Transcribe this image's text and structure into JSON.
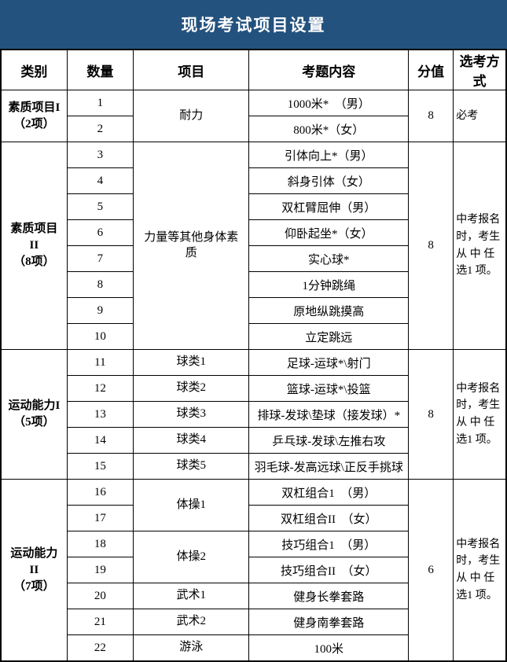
{
  "title": "现场考试项目设置",
  "colors": {
    "banner_bg": "#24527e",
    "banner_text": "#ffffff",
    "border": "#000000"
  },
  "table": {
    "headers": [
      "类别",
      "数量",
      "项目",
      "考题内容",
      "分值",
      "选考方式"
    ],
    "groups": [
      {
        "category": "素质项目I\n（2项）",
        "score": "8",
        "method": "必考",
        "projects": [
          {
            "name": "耐力",
            "items": [
              {
                "num": "1",
                "content": "1000米*　（男）"
              },
              {
                "num": "2",
                "content": "800米*（女）"
              }
            ]
          }
        ]
      },
      {
        "category": "素质项目\nII\n（8项）",
        "score": "8",
        "method": "中考报名时，考生从 中 任选1 项。",
        "projects": [
          {
            "name": "力量等其他身体素\n质",
            "items": [
              {
                "num": "3",
                "content": "引体向上*（男）"
              },
              {
                "num": "4",
                "content": "斜身引体（女）"
              },
              {
                "num": "5",
                "content": "双杠臂屈伸（男）"
              },
              {
                "num": "6",
                "content": "仰卧起坐*（女）"
              },
              {
                "num": "7",
                "content": "实心球*"
              },
              {
                "num": "8",
                "content": "1分钟跳绳"
              },
              {
                "num": "9",
                "content": "原地纵跳摸高"
              },
              {
                "num": "10",
                "content": "立定跳远"
              }
            ]
          }
        ]
      },
      {
        "category": "运动能力I\n（5项）",
        "score": "8",
        "method": "中考报名时，考生从 中 任选1 项。",
        "projects": [
          {
            "name": "球类1",
            "items": [
              {
                "num": "11",
                "content": "足球-运球*\\射门"
              }
            ]
          },
          {
            "name": "球类2",
            "items": [
              {
                "num": "12",
                "content": "篮球-运球*\\投篮"
              }
            ]
          },
          {
            "name": "球类3",
            "items": [
              {
                "num": "13",
                "content": "排球-发球\\垫球（接发球）*"
              }
            ]
          },
          {
            "name": "球类4",
            "items": [
              {
                "num": "14",
                "content": "乒乓球-发球\\左推右攻"
              }
            ]
          },
          {
            "name": "球类5",
            "items": [
              {
                "num": "15",
                "content": "羽毛球-发高远球\\正反手挑球"
              }
            ]
          }
        ]
      },
      {
        "category": "运动能力\nII\n（7项）",
        "score": "6",
        "method": "中考报名时，考生从 中 任选1 项。",
        "projects": [
          {
            "name": "体操1",
            "items": [
              {
                "num": "16",
                "content": "双杠组合1　（男）"
              },
              {
                "num": "17",
                "content": "双杠组合II　（女）"
              }
            ]
          },
          {
            "name": "体操2",
            "items": [
              {
                "num": "18",
                "content": "技巧组合1　（男）"
              },
              {
                "num": "19",
                "content": "技巧组合II　（女）"
              }
            ]
          },
          {
            "name": "武术1",
            "items": [
              {
                "num": "20",
                "content": "健身长拳套路"
              }
            ]
          },
          {
            "name": "武术2",
            "items": [
              {
                "num": "21",
                "content": "健身南拳套路"
              }
            ]
          },
          {
            "name": "游泳",
            "items": [
              {
                "num": "22",
                "content": "100米"
              }
            ]
          }
        ]
      }
    ]
  }
}
